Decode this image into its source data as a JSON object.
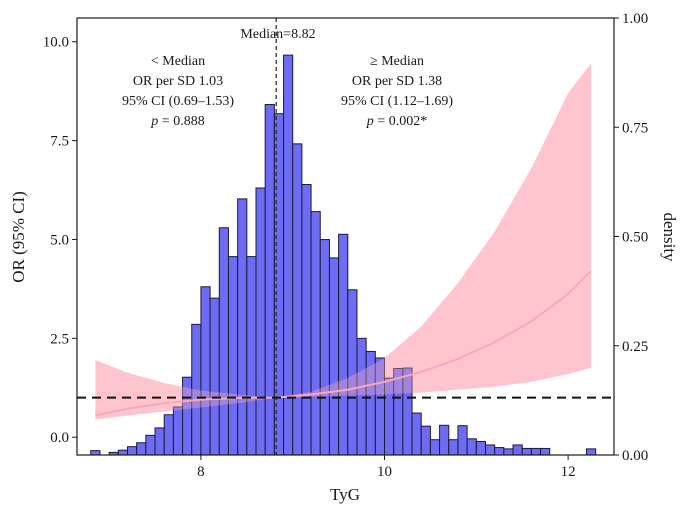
{
  "chart_data": {
    "type": "histogram+line",
    "xlabel": "TyG",
    "ylabel": "OR (95% CI)",
    "y2label": "density",
    "xlim": [
      6.65,
      12.5
    ],
    "ylim": [
      -0.45,
      10.6
    ],
    "y2lim": [
      0.0,
      1.0
    ],
    "x_ticks": [
      8,
      10,
      12
    ],
    "x_tick_labels": [
      "8",
      "10",
      "12"
    ],
    "y_ticks": [
      0,
      2.5,
      5,
      7.5,
      10
    ],
    "y_tick_labels": [
      "0.0",
      "2.5",
      "5.0",
      "7.5",
      "10.0"
    ],
    "y2_ticks": [
      0,
      0.25,
      0.5,
      0.75,
      1.0
    ],
    "y2_tick_labels": [
      "0.00",
      "0.25",
      "0.50",
      "0.75",
      "1.00"
    ],
    "reference_line": {
      "y": 1.0,
      "style": "dashed"
    },
    "median": {
      "x": 8.82,
      "label": "Median=8.82"
    },
    "annotations": {
      "left": {
        "title": "< Median",
        "or_per_sd": "OR per SD 1.03",
        "ci": "95% CI (0.69–1.53)",
        "p_symbol": "p",
        "p_text": " = 0.888"
      },
      "right": {
        "title": "≥ Median",
        "or_per_sd": "OR per SD 1.38",
        "ci": "95% CI (1.12–1.69)",
        "p_symbol": "p",
        "p_text": " = 0.002*"
      }
    },
    "histogram": {
      "bin_width": 0.1,
      "bin_starts": [
        6.8,
        6.9,
        7.0,
        7.1,
        7.2,
        7.3,
        7.4,
        7.5,
        7.6,
        7.7,
        7.8,
        7.9,
        8.0,
        8.1,
        8.2,
        8.3,
        8.4,
        8.5,
        8.6,
        8.7,
        8.8,
        8.9,
        9.0,
        9.1,
        9.2,
        9.3,
        9.4,
        9.5,
        9.6,
        9.7,
        9.8,
        9.9,
        10.0,
        10.1,
        10.2,
        10.3,
        10.4,
        10.5,
        10.6,
        10.7,
        10.8,
        10.9,
        11.0,
        11.1,
        11.2,
        11.3,
        11.4,
        11.5,
        11.6,
        11.7,
        12.2
      ],
      "density": [
        0.01,
        0.0,
        0.006,
        0.011,
        0.019,
        0.028,
        0.045,
        0.062,
        0.092,
        0.11,
        0.178,
        0.299,
        0.385,
        0.359,
        0.52,
        0.454,
        0.586,
        0.454,
        0.611,
        0.802,
        0.781,
        0.915,
        0.712,
        0.619,
        0.557,
        0.493,
        0.451,
        0.505,
        0.378,
        0.267,
        0.237,
        0.222,
        0.176,
        0.198,
        0.199,
        0.096,
        0.066,
        0.035,
        0.068,
        0.035,
        0.067,
        0.037,
        0.031,
        0.023,
        0.017,
        0.014,
        0.023,
        0.015,
        0.015,
        0.015,
        0.014
      ]
    },
    "or_curve": {
      "x": [
        6.85,
        7.2,
        7.6,
        8.0,
        8.4,
        8.82,
        9.2,
        9.6,
        10.0,
        10.4,
        10.8,
        11.2,
        11.6,
        12.0,
        12.25
      ],
      "y": [
        0.55,
        0.72,
        0.86,
        0.95,
        0.99,
        1.0,
        1.08,
        1.2,
        1.4,
        1.65,
        1.98,
        2.4,
        2.93,
        3.62,
        4.2
      ],
      "lo": [
        0.45,
        0.55,
        0.65,
        0.75,
        0.86,
        1.0,
        1.02,
        1.05,
        1.08,
        1.13,
        1.2,
        1.28,
        1.4,
        1.6,
        1.75
      ],
      "hi": [
        1.95,
        1.63,
        1.37,
        1.18,
        1.08,
        1.0,
        1.15,
        1.5,
        2.0,
        2.8,
        3.9,
        5.2,
        6.8,
        8.7,
        9.45
      ]
    }
  }
}
